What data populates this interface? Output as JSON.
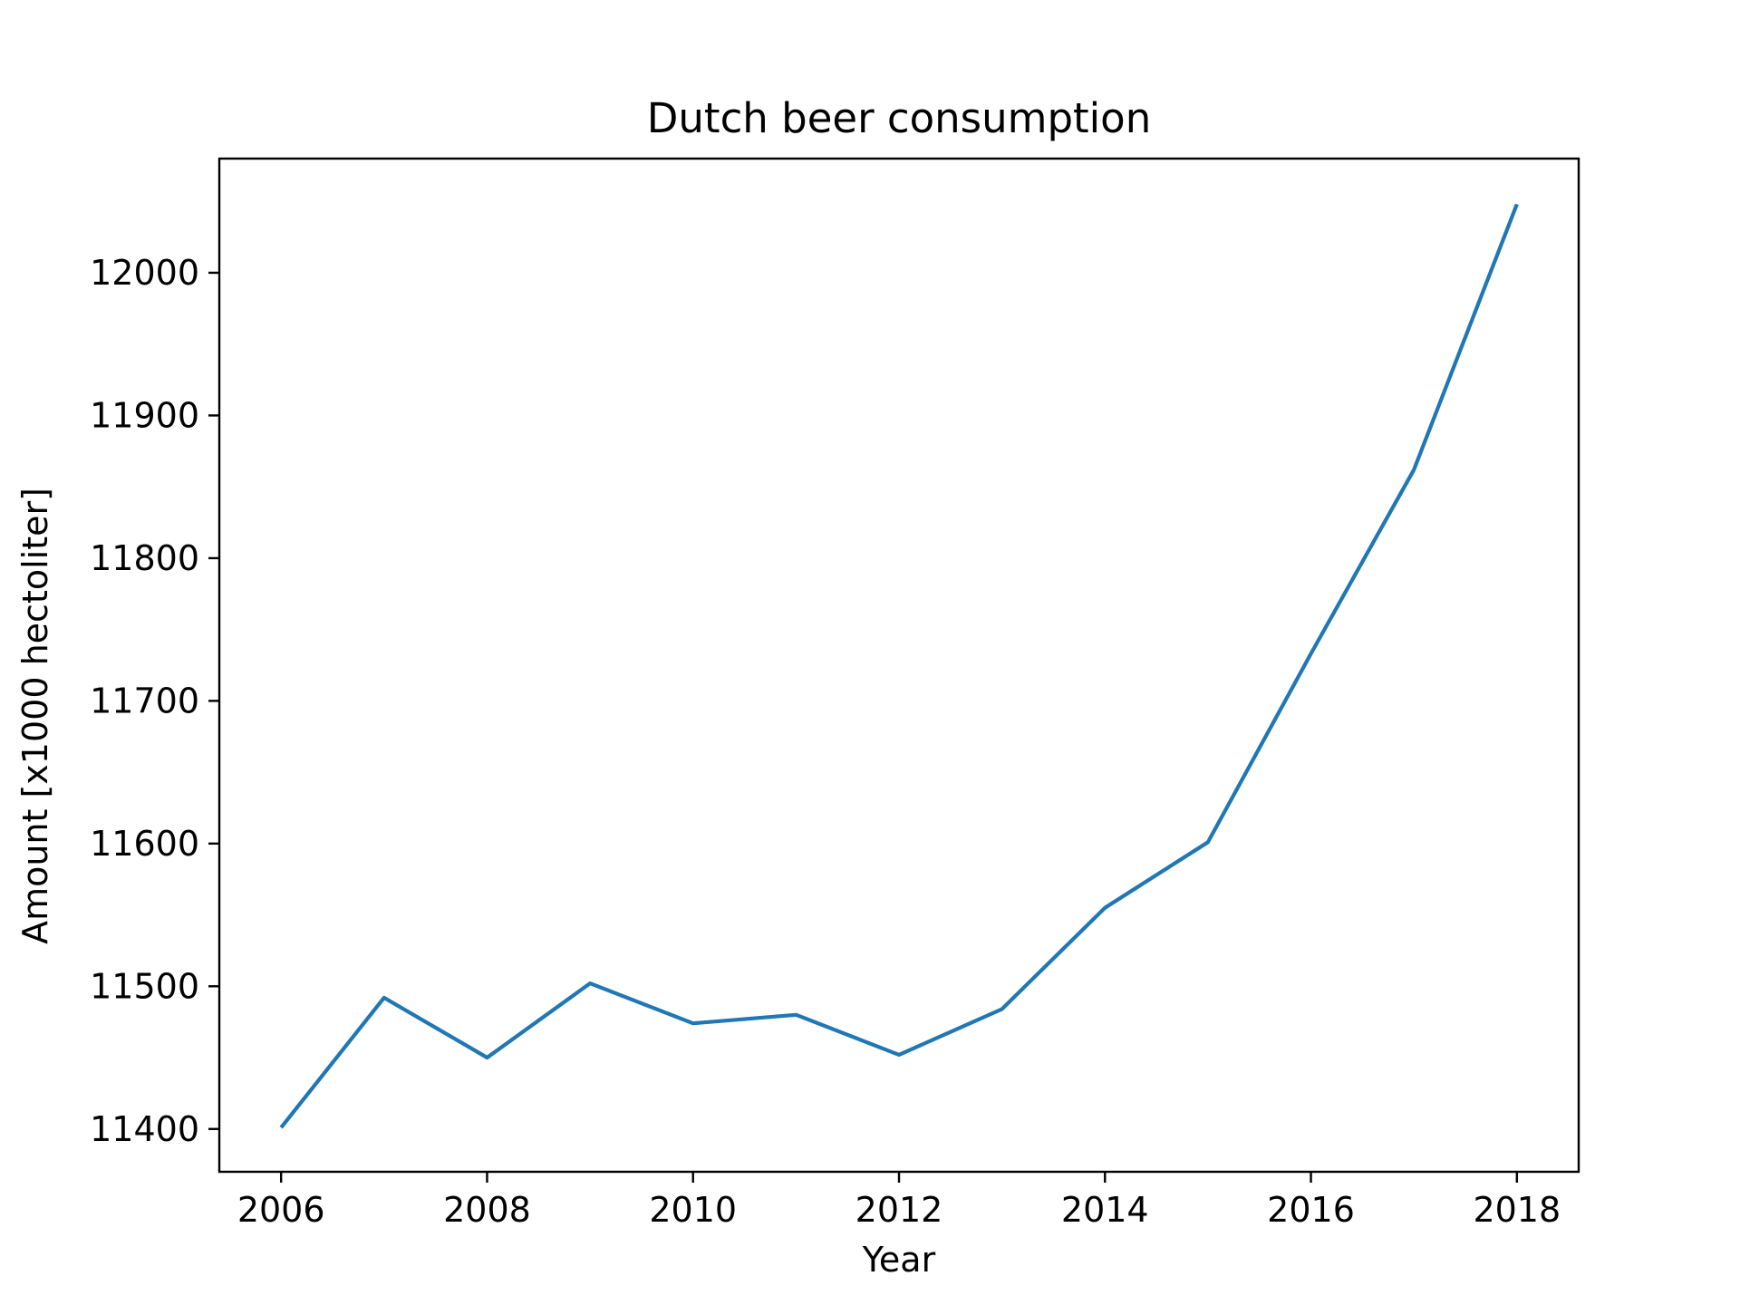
{
  "chart_data": {
    "type": "line",
    "title": "Dutch beer consumption",
    "xlabel": "Year",
    "ylabel": "Amount [x1000 hectoliter]",
    "xlim": [
      2005.4,
      2018.6
    ],
    "ylim": [
      11370,
      12080
    ],
    "xticks": [
      2006,
      2008,
      2010,
      2012,
      2014,
      2016,
      2018
    ],
    "yticks": [
      11400,
      11500,
      11600,
      11700,
      11800,
      11900,
      12000
    ],
    "grid": false,
    "line_color": "#1f77b4",
    "x": [
      2006,
      2007,
      2008,
      2009,
      2010,
      2011,
      2012,
      2013,
      2014,
      2015,
      2016,
      2017,
      2018
    ],
    "y": [
      11401,
      11492,
      11450,
      11502,
      11474,
      11480,
      11452,
      11484,
      11555,
      11601,
      11733,
      11862,
      12048
    ]
  }
}
